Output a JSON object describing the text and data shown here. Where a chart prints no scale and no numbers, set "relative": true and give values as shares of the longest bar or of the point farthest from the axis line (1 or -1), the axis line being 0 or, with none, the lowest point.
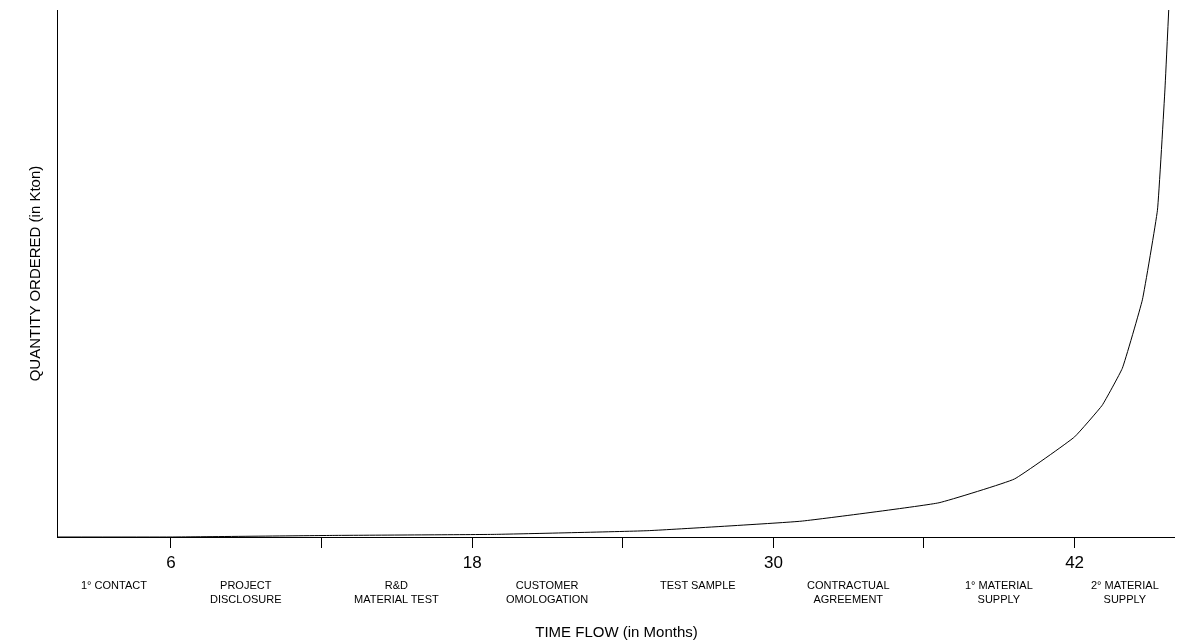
{
  "chart_data": {
    "type": "line",
    "relative": true,
    "xlabel": "TIME FLOW (in Months)",
    "ylabel": "QUANTITY ORDERED (in Kton)",
    "xlim": [
      1.5,
      46
    ],
    "xticks": [
      6,
      {
        "value": 12,
        "label": null
      },
      18,
      {
        "value": 24,
        "label": null
      },
      30,
      {
        "value": 36,
        "label": null
      },
      42
    ],
    "series": [
      {
        "color": "#000000",
        "x": [
          1.5,
          6,
          12.5,
          18.9,
          25,
          31.1,
          36.6,
          39.6,
          42,
          43.1,
          43.9,
          44.7,
          45.3,
          45.6,
          45.75
        ],
        "values": [
          0,
          0,
          0.003,
          0.005,
          0.012,
          0.03,
          0.065,
          0.11,
          0.19,
          0.25,
          0.32,
          0.45,
          0.62,
          0.85,
          1
        ]
      }
    ],
    "annotations": [
      "1° CONTACT",
      "PROJECT\nDISCLOSURE",
      "R&D\nMATERIAL TEST",
      "CUSTOMER\nOMOLOGATION",
      "TEST SAMPLE",
      "CONTRACTUAL\nAGREEMENT",
      "1° MATERIAL\nSUPPLY",
      "2° MATERIAL\nSUPPLY"
    ],
    "grid": false,
    "marker": "none",
    "line_style": "solid"
  }
}
